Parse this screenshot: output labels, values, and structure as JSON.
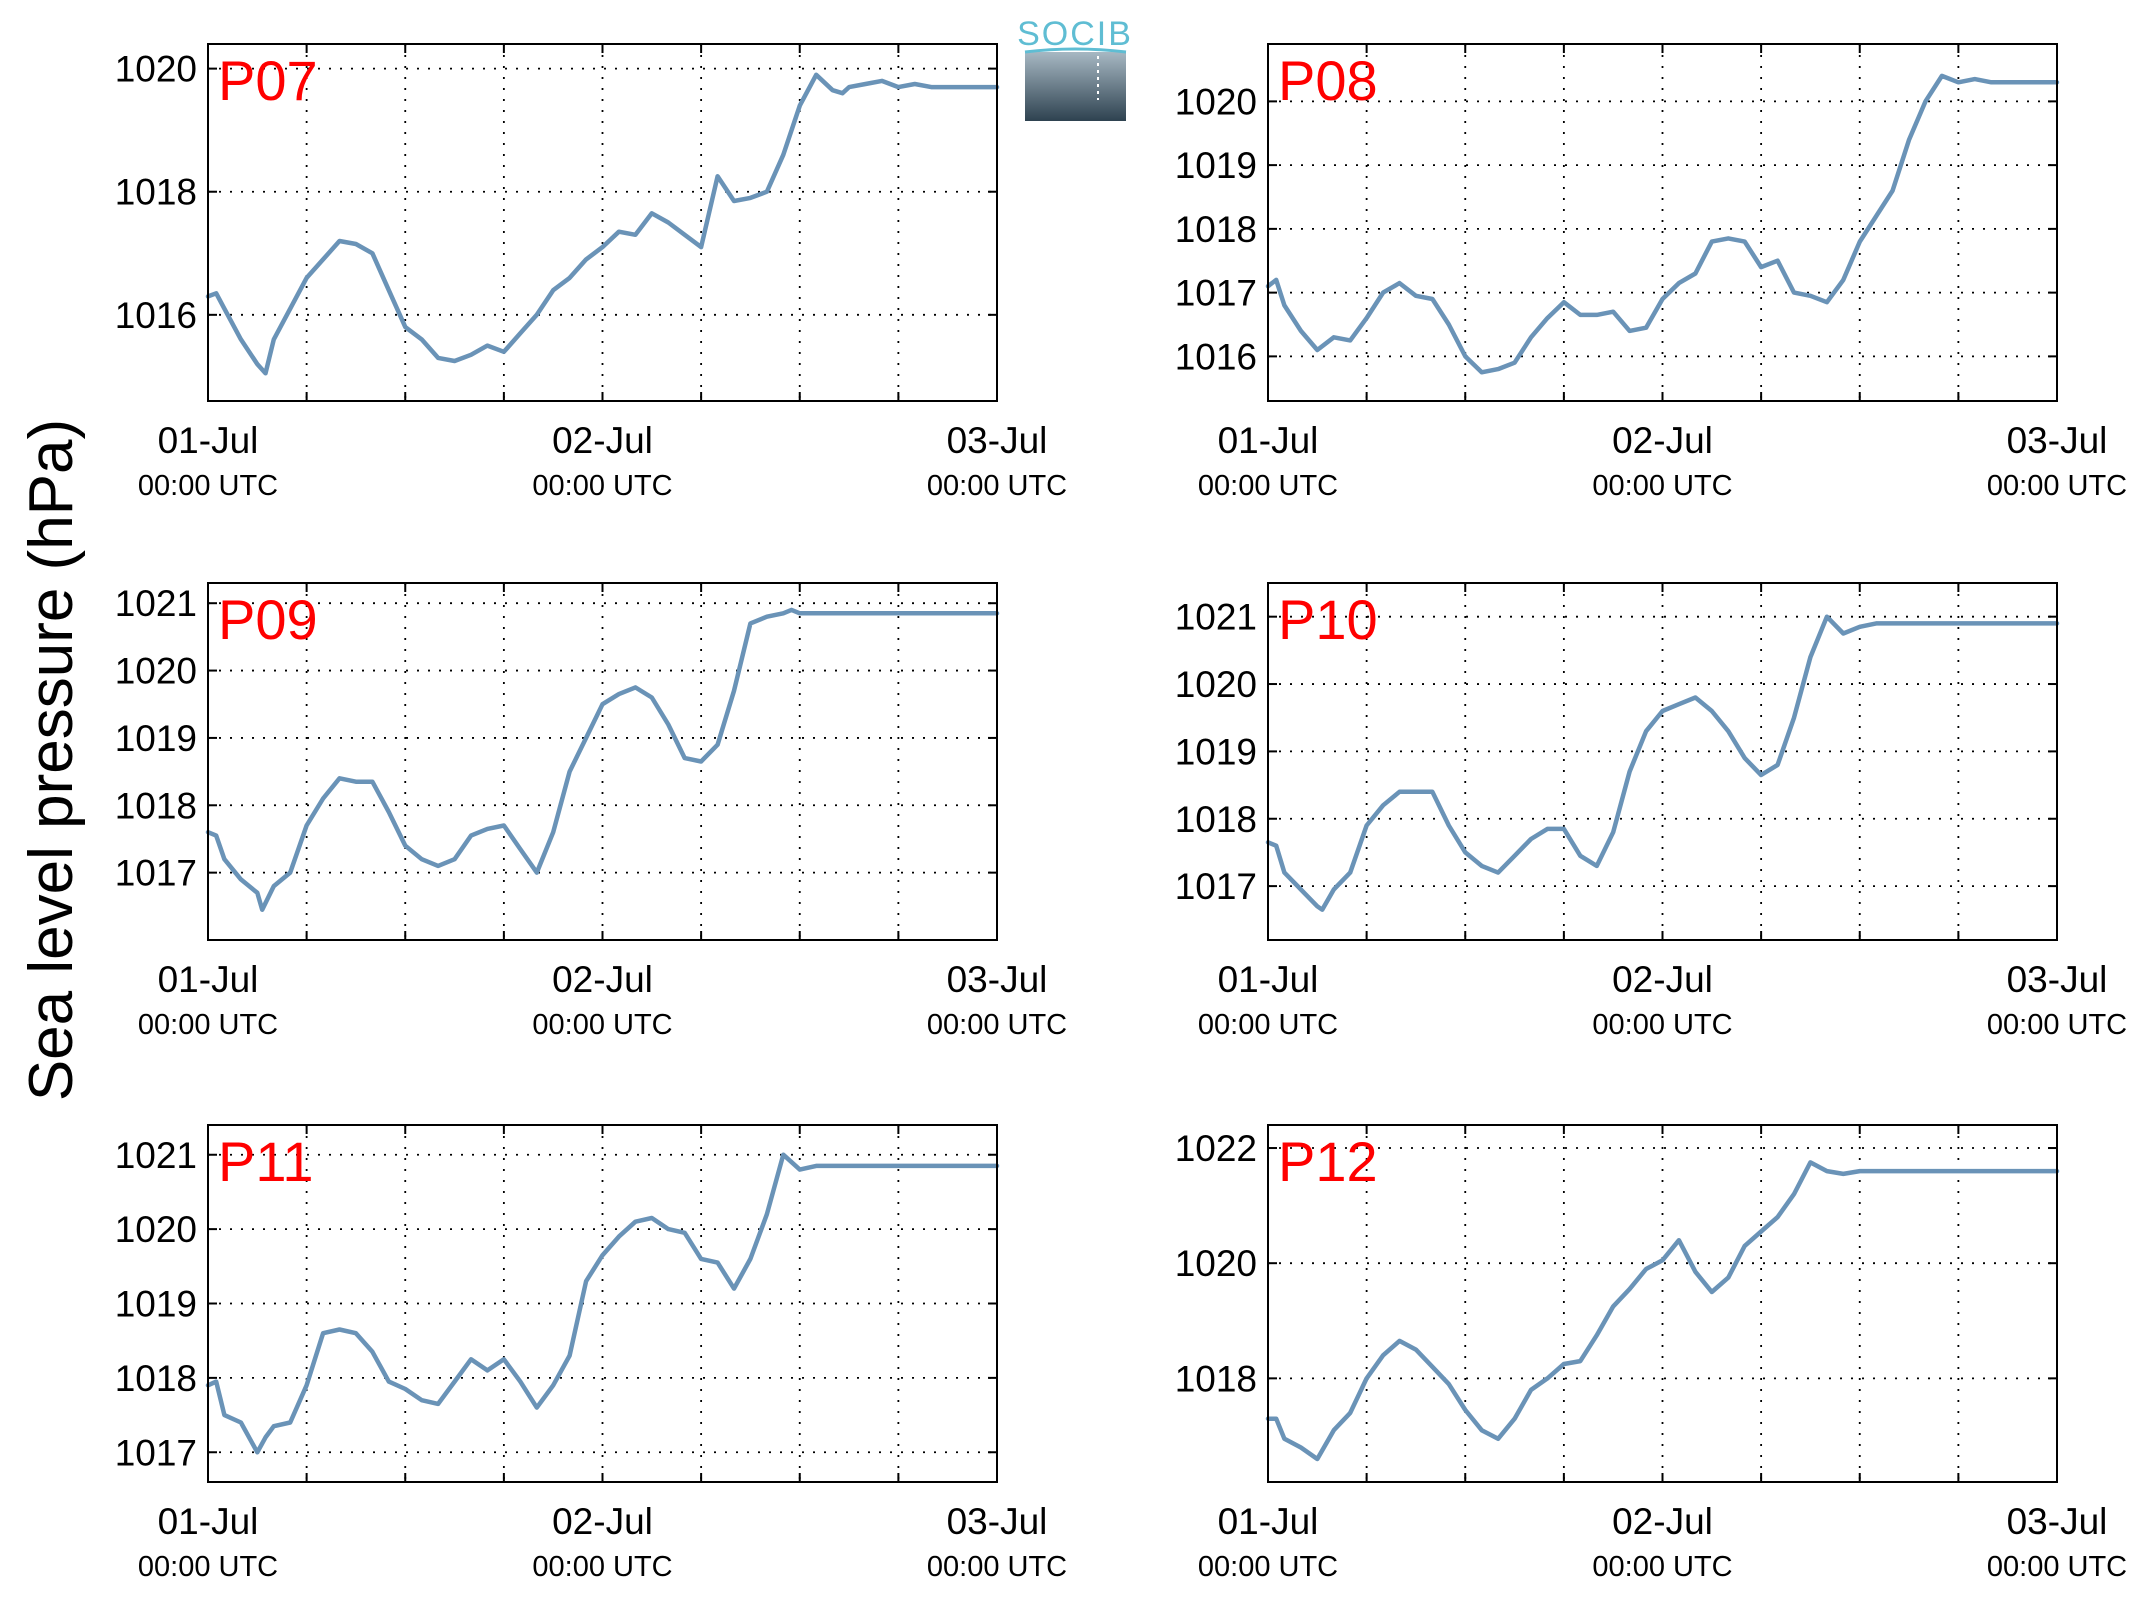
{
  "figure": {
    "ylabel": "Sea level pressure (hPa)",
    "logo_text": "SOCIB",
    "line_color": "#6a93b7",
    "station_label_color": "#ff0000"
  },
  "chart_data": [
    {
      "type": "line",
      "station": "P07",
      "x_ticks": [
        {
          "date": "01-Jul",
          "time": "00:00 UTC"
        },
        {
          "date": "02-Jul",
          "time": "00:00 UTC"
        },
        {
          "date": "03-Jul",
          "time": "00:00 UTC"
        }
      ],
      "x_range_hours": [
        0,
        48
      ],
      "grid": true,
      "ylim": [
        1014.6,
        1020.4
      ],
      "yticks": [
        1016,
        1018,
        1020
      ],
      "x_hours": [
        0,
        0.5,
        1,
        2,
        3,
        3.5,
        4,
        5,
        6,
        7,
        8,
        9,
        10,
        11,
        12,
        13,
        14,
        15,
        16,
        17,
        18,
        19,
        20,
        21,
        22,
        23,
        24,
        25,
        26,
        27,
        28,
        29,
        30,
        31,
        32,
        33,
        34,
        35,
        36,
        37,
        38,
        38.6,
        39,
        40,
        41,
        42,
        43,
        44,
        45,
        46,
        47,
        48
      ],
      "y": [
        1016.3,
        1016.35,
        1016.1,
        1015.6,
        1015.2,
        1015.05,
        1015.6,
        1016.1,
        1016.6,
        1016.9,
        1017.2,
        1017.15,
        1017.0,
        1016.4,
        1015.8,
        1015.6,
        1015.3,
        1015.25,
        1015.35,
        1015.5,
        1015.4,
        1015.7,
        1016.0,
        1016.4,
        1016.6,
        1016.9,
        1017.1,
        1017.35,
        1017.3,
        1017.65,
        1017.5,
        1017.3,
        1017.1,
        1018.25,
        1017.85,
        1017.9,
        1018.0,
        1018.6,
        1019.4,
        1019.9,
        1019.65,
        1019.6,
        1019.7,
        1019.75,
        1019.8,
        1019.7,
        1019.75,
        1019.7,
        1019.7,
        1019.7,
        1019.7,
        1019.7
      ]
    },
    {
      "type": "line",
      "station": "P08",
      "x_ticks": [
        {
          "date": "01-Jul",
          "time": "00:00 UTC"
        },
        {
          "date": "02-Jul",
          "time": "00:00 UTC"
        },
        {
          "date": "03-Jul",
          "time": "00:00 UTC"
        }
      ],
      "x_range_hours": [
        0,
        48
      ],
      "grid": true,
      "ylim": [
        1015.3,
        1020.9
      ],
      "yticks": [
        1016,
        1017,
        1018,
        1019,
        1020
      ],
      "x_hours": [
        0,
        0.5,
        1,
        2,
        3,
        4,
        5,
        6,
        7,
        8,
        9,
        10,
        11,
        12,
        13,
        14,
        15,
        16,
        17,
        18,
        19,
        20,
        21,
        22,
        23,
        24,
        25,
        26,
        27,
        28,
        29,
        30,
        31,
        32,
        33,
        34,
        35,
        36,
        37,
        38,
        39,
        40,
        41,
        42,
        43,
        44,
        45,
        46,
        47,
        48
      ],
      "y": [
        1017.1,
        1017.2,
        1016.8,
        1016.4,
        1016.1,
        1016.3,
        1016.25,
        1016.6,
        1017.0,
        1017.15,
        1016.95,
        1016.9,
        1016.5,
        1016.0,
        1015.75,
        1015.8,
        1015.9,
        1016.3,
        1016.6,
        1016.85,
        1016.65,
        1016.65,
        1016.7,
        1016.4,
        1016.45,
        1016.9,
        1017.15,
        1017.3,
        1017.8,
        1017.85,
        1017.8,
        1017.4,
        1017.5,
        1017.0,
        1016.95,
        1016.85,
        1017.2,
        1017.8,
        1018.2,
        1018.6,
        1019.4,
        1020.0,
        1020.4,
        1020.3,
        1020.35,
        1020.3,
        1020.3,
        1020.3,
        1020.3,
        1020.3
      ]
    },
    {
      "type": "line",
      "station": "P09",
      "x_ticks": [
        {
          "date": "01-Jul",
          "time": "00:00 UTC"
        },
        {
          "date": "02-Jul",
          "time": "00:00 UTC"
        },
        {
          "date": "03-Jul",
          "time": "00:00 UTC"
        }
      ],
      "x_range_hours": [
        0,
        48
      ],
      "grid": true,
      "ylim": [
        1016.0,
        1021.3
      ],
      "yticks": [
        1017,
        1018,
        1019,
        1020,
        1021
      ],
      "x_hours": [
        0,
        0.5,
        1,
        2,
        3,
        3.3,
        4,
        5,
        6,
        7,
        8,
        9,
        10,
        11,
        12,
        13,
        14,
        15,
        16,
        17,
        18,
        19,
        20,
        21,
        22,
        23,
        24,
        25,
        26,
        27,
        28,
        29,
        30,
        31,
        32,
        33,
        34,
        35,
        35.5,
        36,
        37,
        38,
        39,
        40,
        41,
        42,
        43,
        44,
        45,
        46,
        47,
        48
      ],
      "y": [
        1017.6,
        1017.55,
        1017.2,
        1016.9,
        1016.7,
        1016.45,
        1016.8,
        1017.0,
        1017.7,
        1018.1,
        1018.4,
        1018.35,
        1018.35,
        1017.9,
        1017.4,
        1017.2,
        1017.1,
        1017.2,
        1017.55,
        1017.65,
        1017.7,
        1017.35,
        1017.0,
        1017.6,
        1018.5,
        1019.0,
        1019.5,
        1019.65,
        1019.75,
        1019.6,
        1019.2,
        1018.7,
        1018.65,
        1018.9,
        1019.7,
        1020.7,
        1020.8,
        1020.85,
        1020.9,
        1020.85,
        1020.85,
        1020.85,
        1020.85,
        1020.85,
        1020.85,
        1020.85,
        1020.85,
        1020.85,
        1020.85,
        1020.85,
        1020.85,
        1020.85
      ]
    },
    {
      "type": "line",
      "station": "P10",
      "x_ticks": [
        {
          "date": "01-Jul",
          "time": "00:00 UTC"
        },
        {
          "date": "02-Jul",
          "time": "00:00 UTC"
        },
        {
          "date": "03-Jul",
          "time": "00:00 UTC"
        }
      ],
      "x_range_hours": [
        0,
        48
      ],
      "grid": true,
      "ylim": [
        1016.2,
        1021.5
      ],
      "yticks": [
        1017,
        1018,
        1019,
        1020,
        1021
      ],
      "x_hours": [
        0,
        0.5,
        1,
        2,
        3,
        3.3,
        4,
        5,
        6,
        7,
        8,
        9,
        10,
        11,
        12,
        13,
        14,
        15,
        16,
        17,
        18,
        19,
        20,
        21,
        22,
        23,
        24,
        25,
        26,
        27,
        28,
        29,
        30,
        31,
        32,
        33,
        34,
        35,
        36,
        37,
        38,
        39,
        40,
        41,
        42,
        43,
        44,
        45,
        46,
        47,
        48
      ],
      "y": [
        1017.65,
        1017.6,
        1017.2,
        1016.95,
        1016.7,
        1016.65,
        1016.95,
        1017.2,
        1017.9,
        1018.2,
        1018.4,
        1018.4,
        1018.4,
        1017.9,
        1017.5,
        1017.3,
        1017.2,
        1017.45,
        1017.7,
        1017.85,
        1017.85,
        1017.45,
        1017.3,
        1017.8,
        1018.7,
        1019.3,
        1019.6,
        1019.7,
        1019.8,
        1019.6,
        1019.3,
        1018.9,
        1018.65,
        1018.8,
        1019.5,
        1020.4,
        1021.0,
        1020.75,
        1020.85,
        1020.9,
        1020.9,
        1020.9,
        1020.9,
        1020.9,
        1020.9,
        1020.9,
        1020.9,
        1020.9,
        1020.9,
        1020.9,
        1020.9
      ]
    },
    {
      "type": "line",
      "station": "P11",
      "x_ticks": [
        {
          "date": "01-Jul",
          "time": "00:00 UTC"
        },
        {
          "date": "02-Jul",
          "time": "00:00 UTC"
        },
        {
          "date": "03-Jul",
          "time": "00:00 UTC"
        }
      ],
      "x_range_hours": [
        0,
        48
      ],
      "grid": true,
      "ylim": [
        1016.6,
        1021.4
      ],
      "yticks": [
        1017,
        1018,
        1019,
        1020,
        1021
      ],
      "x_hours": [
        0,
        0.5,
        1,
        2,
        3,
        3.5,
        4,
        5,
        6,
        7,
        8,
        9,
        10,
        11,
        12,
        13,
        14,
        15,
        16,
        17,
        18,
        19,
        20,
        21,
        22,
        23,
        24,
        25,
        26,
        27,
        28,
        29,
        30,
        31,
        32,
        33,
        34,
        35,
        36,
        37,
        38,
        39,
        40,
        41,
        42,
        43,
        44,
        45,
        46,
        47,
        48
      ],
      "y": [
        1017.9,
        1017.95,
        1017.5,
        1017.4,
        1017.0,
        1017.2,
        1017.35,
        1017.4,
        1017.9,
        1018.6,
        1018.65,
        1018.6,
        1018.35,
        1017.95,
        1017.85,
        1017.7,
        1017.65,
        1017.95,
        1018.25,
        1018.1,
        1018.25,
        1017.95,
        1017.6,
        1017.9,
        1018.3,
        1019.3,
        1019.65,
        1019.9,
        1020.1,
        1020.15,
        1020.0,
        1019.95,
        1019.6,
        1019.55,
        1019.2,
        1019.6,
        1020.2,
        1021.0,
        1020.8,
        1020.85,
        1020.85,
        1020.85,
        1020.85,
        1020.85,
        1020.85,
        1020.85,
        1020.85,
        1020.85,
        1020.85,
        1020.85,
        1020.85
      ]
    },
    {
      "type": "line",
      "station": "P12",
      "x_ticks": [
        {
          "date": "01-Jul",
          "time": "00:00 UTC"
        },
        {
          "date": "02-Jul",
          "time": "00:00 UTC"
        },
        {
          "date": "03-Jul",
          "time": "00:00 UTC"
        }
      ],
      "x_range_hours": [
        0,
        48
      ],
      "grid": true,
      "ylim": [
        1016.2,
        1022.4
      ],
      "yticks": [
        1018,
        1020,
        1022
      ],
      "x_hours": [
        0,
        0.5,
        1,
        2,
        3,
        4,
        5,
        6,
        7,
        8,
        9,
        10,
        11,
        12,
        13,
        14,
        15,
        16,
        17,
        18,
        19,
        20,
        21,
        22,
        23,
        24,
        25,
        26,
        27,
        28,
        29,
        30,
        31,
        32,
        33,
        34,
        35,
        36,
        37,
        38,
        39,
        40,
        41,
        42,
        43,
        44,
        45,
        46,
        47,
        48
      ],
      "y": [
        1017.3,
        1017.3,
        1016.95,
        1016.8,
        1016.6,
        1017.1,
        1017.4,
        1018.0,
        1018.4,
        1018.65,
        1018.5,
        1018.2,
        1017.9,
        1017.45,
        1017.1,
        1016.95,
        1017.3,
        1017.8,
        1018.0,
        1018.25,
        1018.3,
        1018.75,
        1019.25,
        1019.55,
        1019.9,
        1020.05,
        1020.4,
        1019.85,
        1019.5,
        1019.75,
        1020.3,
        1020.55,
        1020.8,
        1021.2,
        1021.75,
        1021.6,
        1021.55,
        1021.6,
        1021.6,
        1021.6,
        1021.6,
        1021.6,
        1021.6,
        1021.6,
        1021.6,
        1021.6,
        1021.6,
        1021.6,
        1021.6,
        1021.6
      ]
    }
  ]
}
